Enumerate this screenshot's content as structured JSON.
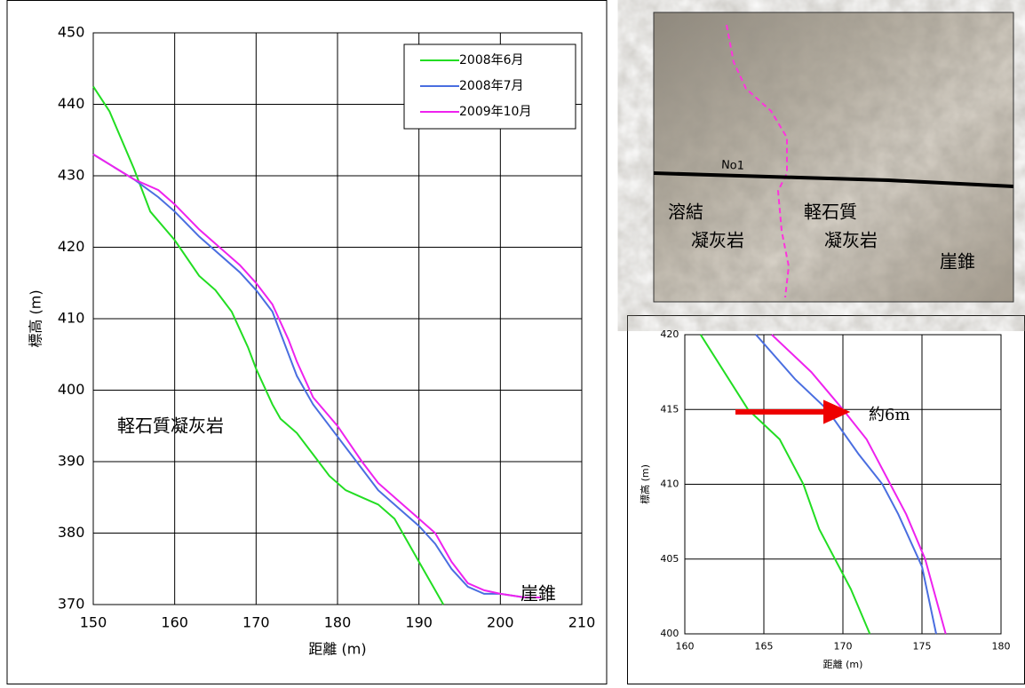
{
  "chart_data": [
    {
      "type": "line",
      "xlabel": "距離 (m)",
      "ylabel": "標高 (m)",
      "xlim": [
        150,
        210
      ],
      "xticks": [
        150,
        160,
        170,
        180,
        190,
        200,
        210
      ],
      "ylim": [
        370,
        450
      ],
      "yticks": [
        370,
        380,
        390,
        400,
        410,
        420,
        430,
        440,
        450
      ],
      "grid": true,
      "legend": "upper right",
      "annotations": [
        "軽石質凝灰岩",
        "崖錐"
      ],
      "series": [
        {
          "name": "2008年6月",
          "color": "#22dd22",
          "x": [
            150,
            152,
            155,
            157,
            160,
            163,
            165,
            167,
            169,
            170,
            172,
            173,
            175,
            177,
            179,
            181,
            183,
            185,
            187,
            189,
            191,
            193
          ],
          "values": [
            442.5,
            439,
            431,
            425,
            421,
            416,
            414,
            411,
            406,
            403,
            398,
            396,
            394,
            391,
            388,
            386,
            385,
            384,
            382,
            378,
            374,
            370
          ]
        },
        {
          "name": "2008年7月",
          "color": "#4a6ee0",
          "x": [
            150,
            155,
            158,
            160,
            163,
            165,
            168,
            170,
            172,
            174,
            175,
            177,
            180,
            183,
            185,
            188,
            190,
            192,
            194,
            196,
            198,
            200,
            203
          ],
          "values": [
            433,
            429.5,
            427,
            425,
            421.5,
            419.5,
            416.5,
            414,
            411,
            405,
            402,
            398,
            393.5,
            389,
            386,
            383,
            381,
            378.5,
            375,
            372.5,
            371.5,
            371.5,
            371
          ]
        },
        {
          "name": "2009年10月",
          "color": "#ee22ee",
          "x": [
            150,
            155,
            158,
            160,
            163,
            165,
            168,
            170,
            172,
            174,
            175,
            177,
            180,
            183,
            185,
            188,
            190,
            192,
            194,
            196,
            198,
            200,
            203,
            205
          ],
          "values": [
            433,
            429.5,
            428,
            426,
            422.5,
            420.5,
            417.5,
            415,
            412,
            407,
            404,
            399,
            395,
            390,
            387,
            384,
            382,
            380,
            376,
            373,
            372,
            371.5,
            371,
            371
          ]
        }
      ]
    },
    {
      "type": "line",
      "xlabel": "距離 (m)",
      "ylabel": "標高 (m)",
      "xlim": [
        160,
        180
      ],
      "xticks": [
        160,
        165,
        170,
        175,
        180
      ],
      "ylim": [
        400,
        420
      ],
      "yticks": [
        400,
        405,
        410,
        415,
        420
      ],
      "grid": true,
      "annotations": [
        "約6m"
      ],
      "series": [
        {
          "color": "#22dd22",
          "x": [
            161,
            164,
            166,
            167.5,
            168.5,
            169.5,
            170.5,
            171.7
          ],
          "values": [
            420,
            415,
            413,
            410,
            407,
            405,
            403,
            400
          ]
        },
        {
          "color": "#4a6ee0",
          "x": [
            164.5,
            167,
            169,
            171,
            172.5,
            173.5,
            175,
            175.9
          ],
          "values": [
            420,
            417,
            415,
            412,
            410,
            408,
            404.5,
            400
          ]
        },
        {
          "color": "#ee22ee",
          "x": [
            165.5,
            168,
            170,
            171.5,
            173,
            174,
            175.2,
            176.5
          ],
          "values": [
            420,
            417.5,
            415,
            413,
            410,
            408,
            405,
            400
          ]
        }
      ]
    }
  ],
  "photo": {
    "labels": [
      "No1",
      "溶結",
      "凝灰岩",
      "軽石質",
      "凝灰岩",
      "崖錐"
    ]
  }
}
